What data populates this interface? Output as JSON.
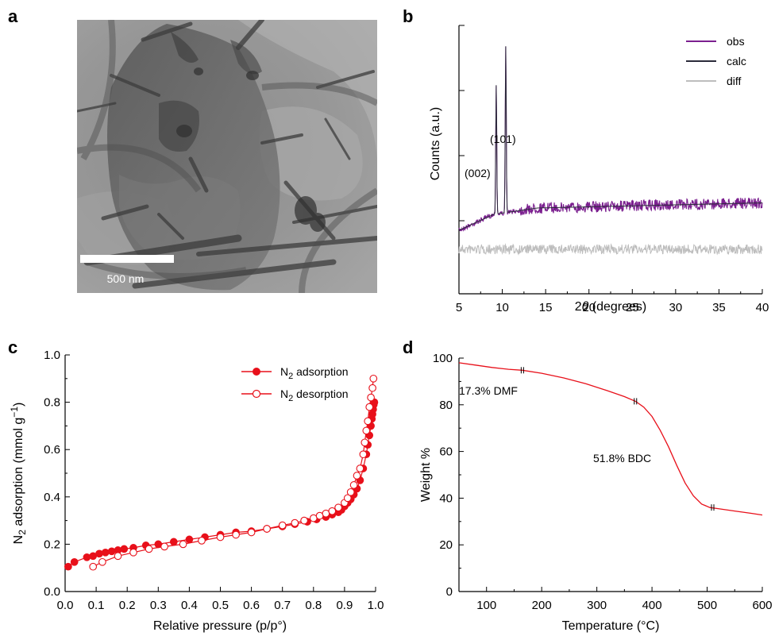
{
  "figure": {
    "panel_labels": [
      "a",
      "b",
      "c",
      "d"
    ]
  },
  "micrograph": {
    "scalebar_label": "500 nm"
  },
  "chart_data": [
    {
      "panel": "b",
      "type": "line",
      "xlabel_pre": "2",
      "xlabel_theta": "θ",
      "xlabel_post": " (degrees)",
      "ylabel": "Counts (a.u.)",
      "xlim": [
        5,
        40
      ],
      "xticks": [
        "5",
        "10",
        "15",
        "20",
        "25",
        "30",
        "35",
        "40"
      ],
      "legend_position": "top-right",
      "series": [
        {
          "name": "obs",
          "color": "#7b1f8f"
        },
        {
          "name": "calc",
          "color": "#2b2b3a"
        },
        {
          "name": "diff",
          "color": "#bdbdbd"
        }
      ],
      "annotations": [
        {
          "label": "(002)",
          "x": 9.3
        },
        {
          "label": "(101)",
          "x": 10.4
        }
      ],
      "peaks": [
        {
          "x": 9.3,
          "height": 0.48
        },
        {
          "x": 10.4,
          "height": 0.62
        }
      ]
    },
    {
      "panel": "c",
      "type": "line",
      "xlabel": "Relative pressure (p/p°)",
      "ylabel_pre": "N",
      "ylabel_sub": "2",
      "ylabel_mid": " adsorption (mmol g",
      "ylabel_sup": "−1",
      "ylabel_post": ")",
      "xlim": [
        0,
        1.0
      ],
      "ylim": [
        0,
        1.0
      ],
      "xticks": [
        "0.0",
        "0.1",
        "0.2",
        "0.3",
        "0.4",
        "0.5",
        "0.6",
        "0.7",
        "0.8",
        "0.9",
        "1.0"
      ],
      "yticks": [
        "0.0",
        "0.2",
        "0.4",
        "0.6",
        "0.8",
        "1.0"
      ],
      "legend_position": "top-right",
      "series": [
        {
          "name_pre": "N",
          "name_sub": "2",
          "name_post": " adsorption",
          "marker": "filled-circle",
          "color": "#e8101a",
          "x": [
            0.01,
            0.03,
            0.07,
            0.09,
            0.11,
            0.13,
            0.15,
            0.17,
            0.19,
            0.22,
            0.26,
            0.3,
            0.35,
            0.4,
            0.45,
            0.5,
            0.55,
            0.6,
            0.65,
            0.7,
            0.74,
            0.78,
            0.81,
            0.84,
            0.86,
            0.88,
            0.89,
            0.9,
            0.91,
            0.92,
            0.93,
            0.94,
            0.95,
            0.96,
            0.97,
            0.975,
            0.98,
            0.985,
            0.988,
            0.99,
            0.992,
            0.994,
            0.996
          ],
          "y": [
            0.105,
            0.125,
            0.145,
            0.15,
            0.16,
            0.165,
            0.17,
            0.175,
            0.18,
            0.185,
            0.195,
            0.2,
            0.21,
            0.22,
            0.23,
            0.24,
            0.25,
            0.255,
            0.265,
            0.275,
            0.285,
            0.295,
            0.305,
            0.315,
            0.325,
            0.335,
            0.345,
            0.36,
            0.375,
            0.39,
            0.41,
            0.435,
            0.47,
            0.52,
            0.58,
            0.62,
            0.66,
            0.7,
            0.73,
            0.75,
            0.77,
            0.79,
            0.8
          ]
        },
        {
          "name_pre": "N",
          "name_sub": "2",
          "name_post": " desorption",
          "marker": "open-circle",
          "color": "#e8101a",
          "x": [
            0.09,
            0.12,
            0.17,
            0.22,
            0.27,
            0.32,
            0.38,
            0.44,
            0.5,
            0.55,
            0.6,
            0.65,
            0.7,
            0.74,
            0.77,
            0.8,
            0.82,
            0.84,
            0.86,
            0.88,
            0.9,
            0.91,
            0.92,
            0.93,
            0.94,
            0.95,
            0.96,
            0.965,
            0.97,
            0.975,
            0.98,
            0.985,
            0.99,
            0.993
          ],
          "y": [
            0.105,
            0.125,
            0.15,
            0.165,
            0.18,
            0.19,
            0.2,
            0.215,
            0.23,
            0.24,
            0.25,
            0.265,
            0.28,
            0.29,
            0.3,
            0.31,
            0.32,
            0.33,
            0.34,
            0.355,
            0.375,
            0.395,
            0.42,
            0.45,
            0.49,
            0.52,
            0.58,
            0.63,
            0.68,
            0.72,
            0.78,
            0.82,
            0.86,
            0.9
          ]
        }
      ]
    },
    {
      "panel": "d",
      "type": "line",
      "xlabel": "Temperature (°C)",
      "ylabel": "Weight %",
      "xlim": [
        50,
        600
      ],
      "ylim": [
        0,
        100
      ],
      "xticks": [
        "100",
        "200",
        "300",
        "400",
        "500",
        "600"
      ],
      "yticks": [
        "0",
        "20",
        "40",
        "60",
        "80",
        "100"
      ],
      "line_color": "#e8101a",
      "x": [
        50,
        80,
        110,
        140,
        165,
        200,
        240,
        280,
        320,
        350,
        370,
        385,
        400,
        415,
        430,
        445,
        460,
        475,
        490,
        505,
        520,
        550,
        580,
        600
      ],
      "y": [
        98.0,
        97.0,
        96.0,
        95.2,
        94.8,
        93.5,
        91.5,
        89.0,
        86.0,
        83.5,
        81.5,
        79.0,
        75.0,
        69.0,
        62.0,
        54.0,
        46.5,
        41.0,
        37.5,
        36.0,
        35.5,
        34.5,
        33.5,
        32.8
      ],
      "markers": [
        {
          "x": 165,
          "y": 94.8
        },
        {
          "x": 370,
          "y": 81.5
        },
        {
          "x": 510,
          "y": 36.0
        }
      ],
      "annotations": [
        {
          "label": "17.3% DMF",
          "x": 50,
          "y": 89
        },
        {
          "label": "51.8% BDC",
          "x": 350,
          "y": 57
        }
      ]
    }
  ]
}
